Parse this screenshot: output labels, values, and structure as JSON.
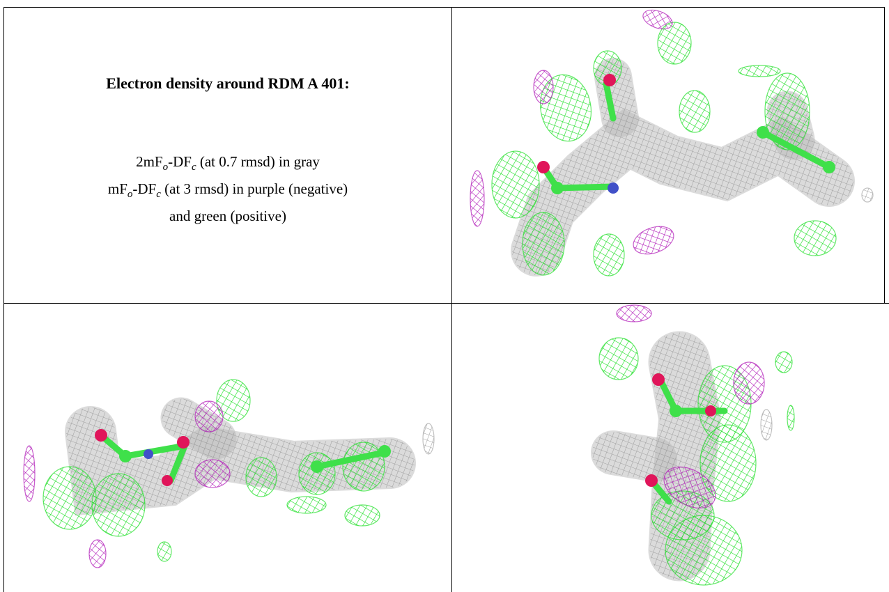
{
  "caption": {
    "title": "Electron density around RDM A 401:",
    "lines": [
      [
        {
          "text": "2mF"
        },
        {
          "sub": "o"
        },
        {
          "text": "-DF"
        },
        {
          "sub": "c"
        },
        {
          "text": " (at 0.7 rmsd) in gray"
        }
      ],
      [
        {
          "text": "mF"
        },
        {
          "sub": "o"
        },
        {
          "text": "-DF"
        },
        {
          "sub": "c"
        },
        {
          "text": " (at 3 rmsd) in purple (negative)"
        }
      ],
      [
        {
          "text": "and green (positive)"
        }
      ]
    ]
  }
}
